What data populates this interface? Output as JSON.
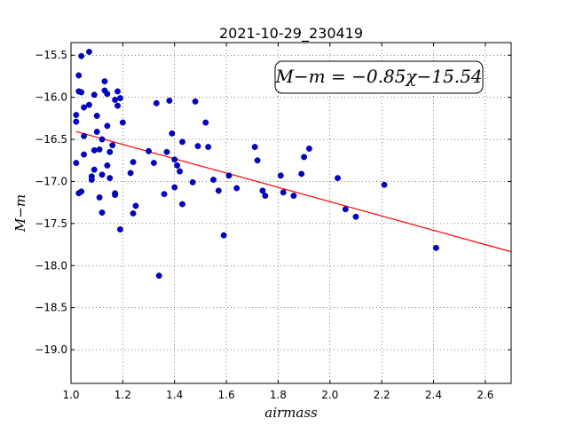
{
  "chart_data": {
    "type": "scatter",
    "title": "2021-10-29_230419",
    "xlabel": "airmass",
    "ylabel": "M−m",
    "xlim": [
      1.0,
      2.7
    ],
    "ylim": [
      -15.35,
      -19.4
    ],
    "y_inverted": true,
    "grid": true,
    "x_ticks": [
      "1.0",
      "1.2",
      "1.4",
      "1.6",
      "1.8",
      "2.0",
      "2.2",
      "2.4",
      "2.6"
    ],
    "y_ticks": [
      "−15.5",
      "−16.0",
      "−16.5",
      "−17.0",
      "−17.5",
      "−18.0",
      "−18.5",
      "−19.0"
    ],
    "annotation": "M−m = −0.85χ−15.54",
    "annotation_location": "top-right",
    "fit": {
      "slope": -0.85,
      "intercept": -15.54,
      "x_range": [
        1.02,
        2.7
      ],
      "color": "#ff0000"
    },
    "point_color": "#0000cc",
    "points": [
      [
        1.02,
        -16.78
      ],
      [
        1.02,
        -16.21
      ],
      [
        1.02,
        -16.29
      ],
      [
        1.03,
        -15.74
      ],
      [
        1.03,
        -15.93
      ],
      [
        1.04,
        -15.94
      ],
      [
        1.04,
        -15.51
      ],
      [
        1.05,
        -16.12
      ],
      [
        1.05,
        -16.46
      ],
      [
        1.05,
        -16.68
      ],
      [
        1.03,
        -17.14
      ],
      [
        1.04,
        -17.12
      ],
      [
        1.07,
        -15.46
      ],
      [
        1.07,
        -16.09
      ],
      [
        1.08,
        -16.94
      ],
      [
        1.08,
        -16.98
      ],
      [
        1.09,
        -16.86
      ],
      [
        1.09,
        -15.97
      ],
      [
        1.09,
        -16.63
      ],
      [
        1.1,
        -16.41
      ],
      [
        1.1,
        -16.22
      ],
      [
        1.11,
        -16.62
      ],
      [
        1.11,
        -17.19
      ],
      [
        1.12,
        -16.5
      ],
      [
        1.12,
        -16.92
      ],
      [
        1.12,
        -17.37
      ],
      [
        1.13,
        -15.81
      ],
      [
        1.13,
        -15.92
      ],
      [
        1.14,
        -15.96
      ],
      [
        1.14,
        -16.34
      ],
      [
        1.14,
        -16.81
      ],
      [
        1.15,
        -16.65
      ],
      [
        1.15,
        -16.96
      ],
      [
        1.16,
        -16.57
      ],
      [
        1.17,
        -17.14
      ],
      [
        1.17,
        -17.16
      ],
      [
        1.17,
        -16.03
      ],
      [
        1.18,
        -16.1
      ],
      [
        1.18,
        -15.93
      ],
      [
        1.19,
        -17.57
      ],
      [
        1.19,
        -16.01
      ],
      [
        1.2,
        -16.3
      ],
      [
        1.23,
        -16.9
      ],
      [
        1.24,
        -16.77
      ],
      [
        1.24,
        -17.38
      ],
      [
        1.25,
        -17.29
      ],
      [
        1.3,
        -16.64
      ],
      [
        1.32,
        -16.78
      ],
      [
        1.33,
        -16.07
      ],
      [
        1.34,
        -18.12
      ],
      [
        1.36,
        -17.15
      ],
      [
        1.37,
        -16.65
      ],
      [
        1.38,
        -16.04
      ],
      [
        1.39,
        -16.43
      ],
      [
        1.4,
        -16.74
      ],
      [
        1.4,
        -17.07
      ],
      [
        1.41,
        -16.81
      ],
      [
        1.42,
        -16.88
      ],
      [
        1.43,
        -17.27
      ],
      [
        1.43,
        -16.53
      ],
      [
        1.47,
        -17.01
      ],
      [
        1.48,
        -16.05
      ],
      [
        1.49,
        -16.58
      ],
      [
        1.52,
        -16.3
      ],
      [
        1.53,
        -16.59
      ],
      [
        1.55,
        -16.98
      ],
      [
        1.57,
        -17.11
      ],
      [
        1.59,
        -17.64
      ],
      [
        1.61,
        -16.93
      ],
      [
        1.64,
        -17.08
      ],
      [
        1.71,
        -16.59
      ],
      [
        1.72,
        -16.75
      ],
      [
        1.74,
        -17.11
      ],
      [
        1.75,
        -17.17
      ],
      [
        1.81,
        -16.93
      ],
      [
        1.82,
        -17.13
      ],
      [
        1.86,
        -17.17
      ],
      [
        1.89,
        -16.91
      ],
      [
        1.9,
        -16.71
      ],
      [
        1.92,
        -16.61
      ],
      [
        2.03,
        -16.96
      ],
      [
        2.06,
        -17.33
      ],
      [
        2.1,
        -17.42
      ],
      [
        2.21,
        -17.04
      ],
      [
        2.41,
        -17.79
      ]
    ]
  }
}
